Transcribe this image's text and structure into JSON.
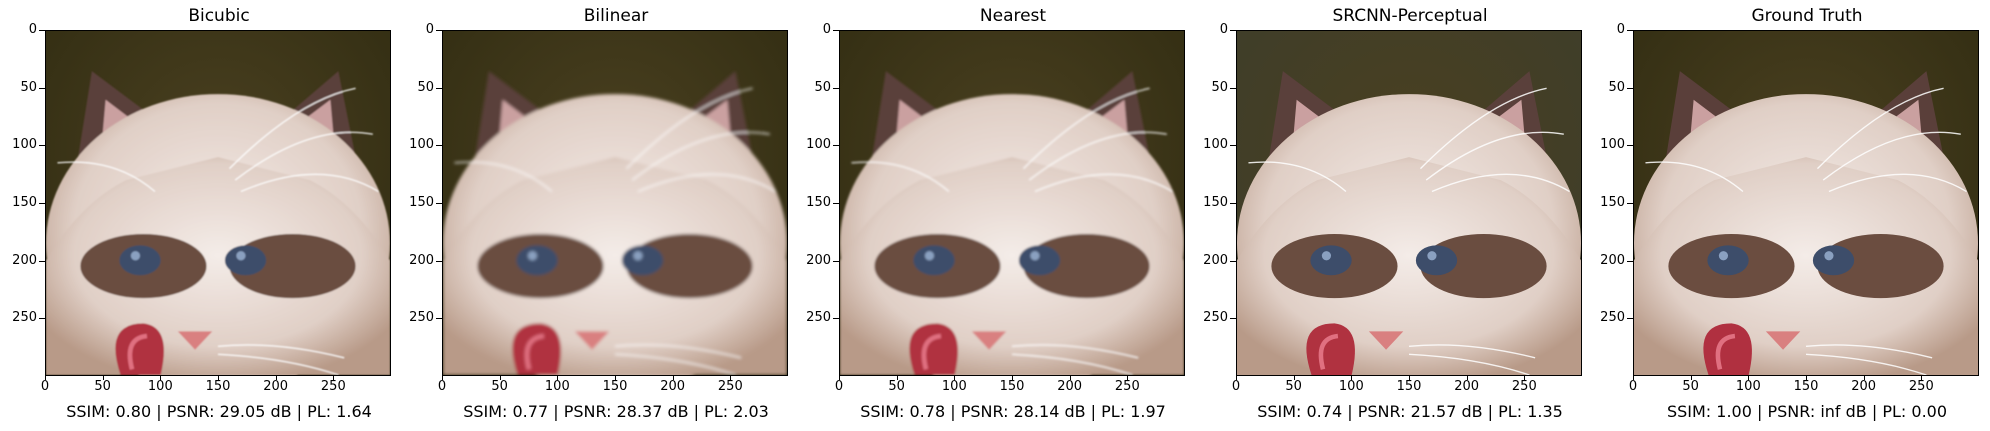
{
  "figure": {
    "axis_ticks": {
      "y": [
        "0",
        "50",
        "100",
        "150",
        "200",
        "250"
      ],
      "x": [
        "0",
        "50",
        "100",
        "150",
        "200",
        "250"
      ]
    },
    "panels": [
      {
        "title": "Bicubic",
        "metrics": "SSIM: 0.80 | PSNR: 29.05 dB | PL: 1.64",
        "background": "#2e2a10",
        "blur": 0.6
      },
      {
        "title": "Bilinear",
        "metrics": "SSIM: 0.77 | PSNR: 28.37 dB | PL: 2.03",
        "background": "#2e2a10",
        "blur": 1.3
      },
      {
        "title": "Nearest",
        "metrics": "SSIM: 0.78 | PSNR: 28.14 dB | PL: 1.97",
        "background": "#2e2a10",
        "blur": 0.9
      },
      {
        "title": "SRCNN-Perceptual",
        "metrics": "SSIM: 0.74 | PSNR: 21.57 dB | PL: 1.35",
        "background": "#3c3d2c",
        "blur": 0.2
      },
      {
        "title": "Ground Truth",
        "metrics": "SSIM: 1.00 | PSNR: inf dB | PL: 0.00",
        "background": "#2e2a10",
        "blur": 0.0
      }
    ]
  }
}
